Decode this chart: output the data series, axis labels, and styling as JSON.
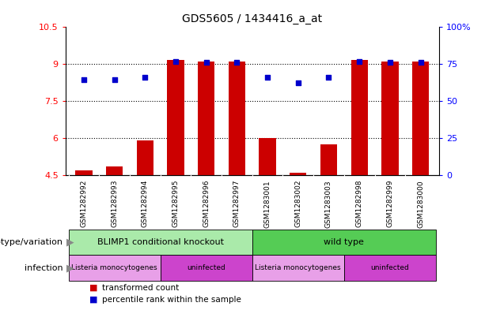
{
  "title": "GDS5605 / 1434416_a_at",
  "samples": [
    "GSM1282992",
    "GSM1282993",
    "GSM1282994",
    "GSM1282995",
    "GSM1282996",
    "GSM1282997",
    "GSM1283001",
    "GSM1283002",
    "GSM1283003",
    "GSM1282998",
    "GSM1282999",
    "GSM1283000"
  ],
  "bar_values": [
    4.7,
    4.85,
    5.9,
    9.15,
    9.1,
    9.1,
    6.0,
    4.6,
    5.75,
    9.15,
    9.1,
    9.1
  ],
  "dot_values": [
    8.35,
    8.35,
    8.45,
    9.1,
    9.05,
    9.05,
    8.45,
    8.25,
    8.45,
    9.1,
    9.05,
    9.05
  ],
  "bar_base": 4.5,
  "ylim_left": [
    4.5,
    10.5
  ],
  "ylim_right": [
    0,
    100
  ],
  "yticks_left": [
    4.5,
    6.0,
    7.5,
    9.0,
    10.5
  ],
  "yticks_right": [
    0,
    25,
    50,
    75,
    100
  ],
  "ytick_labels_left": [
    "4.5",
    "6",
    "7.5",
    "9",
    "10.5"
  ],
  "ytick_labels_right": [
    "0",
    "25",
    "50",
    "75",
    "100%"
  ],
  "hlines": [
    6.0,
    7.5,
    9.0
  ],
  "bar_color": "#cc0000",
  "dot_color": "#0000cc",
  "bar_width": 0.55,
  "genotype_groups": [
    {
      "label": "BLIMP1 conditional knockout",
      "start": 0,
      "end": 6,
      "color": "#aaeaaa"
    },
    {
      "label": "wild type",
      "start": 6,
      "end": 12,
      "color": "#55cc55"
    }
  ],
  "infection_groups": [
    {
      "label": "Listeria monocytogenes",
      "start": 0,
      "end": 3,
      "color": "#e8a0e8"
    },
    {
      "label": "uninfected",
      "start": 3,
      "end": 6,
      "color": "#cc44cc"
    },
    {
      "label": "Listeria monocytogenes",
      "start": 6,
      "end": 9,
      "color": "#e8a0e8"
    },
    {
      "label": "uninfected",
      "start": 9,
      "end": 12,
      "color": "#cc44cc"
    }
  ],
  "legend_items": [
    {
      "label": "transformed count",
      "color": "#cc0000"
    },
    {
      "label": "percentile rank within the sample",
      "color": "#0000cc"
    }
  ],
  "annotation_genotype": "genotype/variation",
  "annotation_infection": "infection",
  "xtick_bg": "#d8d8d8"
}
